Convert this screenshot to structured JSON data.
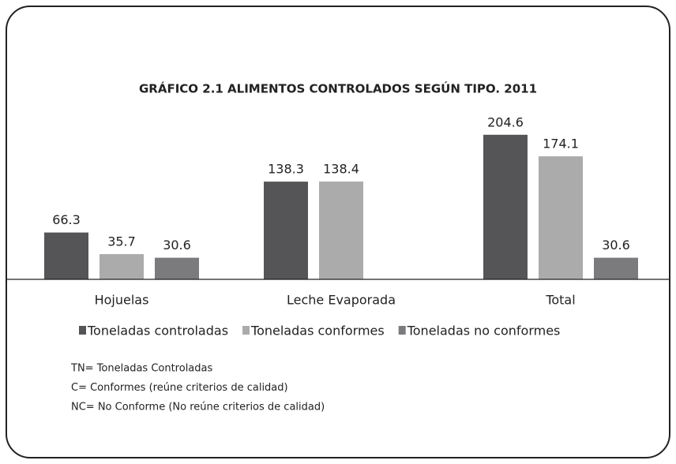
{
  "chart_data": {
    "type": "bar",
    "title": "GRÁFICO 2.1  ALIMENTOS CONTROLADOS SEGÚN TIPO.  2011",
    "categories": [
      "Hojuelas",
      "Leche Evaporada",
      "Total"
    ],
    "series": [
      {
        "name": "Toneladas controladas",
        "color": "#555557",
        "values": [
          66.3,
          138.3,
          204.6
        ]
      },
      {
        "name": "Toneladas conformes",
        "color": "#ababab",
        "values": [
          35.7,
          138.4,
          174.1
        ]
      },
      {
        "name": "Toneladas no conformes",
        "color": "#7b7b7d",
        "values": [
          30.6,
          null,
          30.6
        ]
      }
    ],
    "ylim": [
      0,
      220
    ],
    "legend": "bottom",
    "notes": [
      "TN= Toneladas Controladas",
      "C= Conformes (reúne criterios de calidad)",
      "NC= No Conforme (No reúne criterios de calidad)"
    ]
  }
}
